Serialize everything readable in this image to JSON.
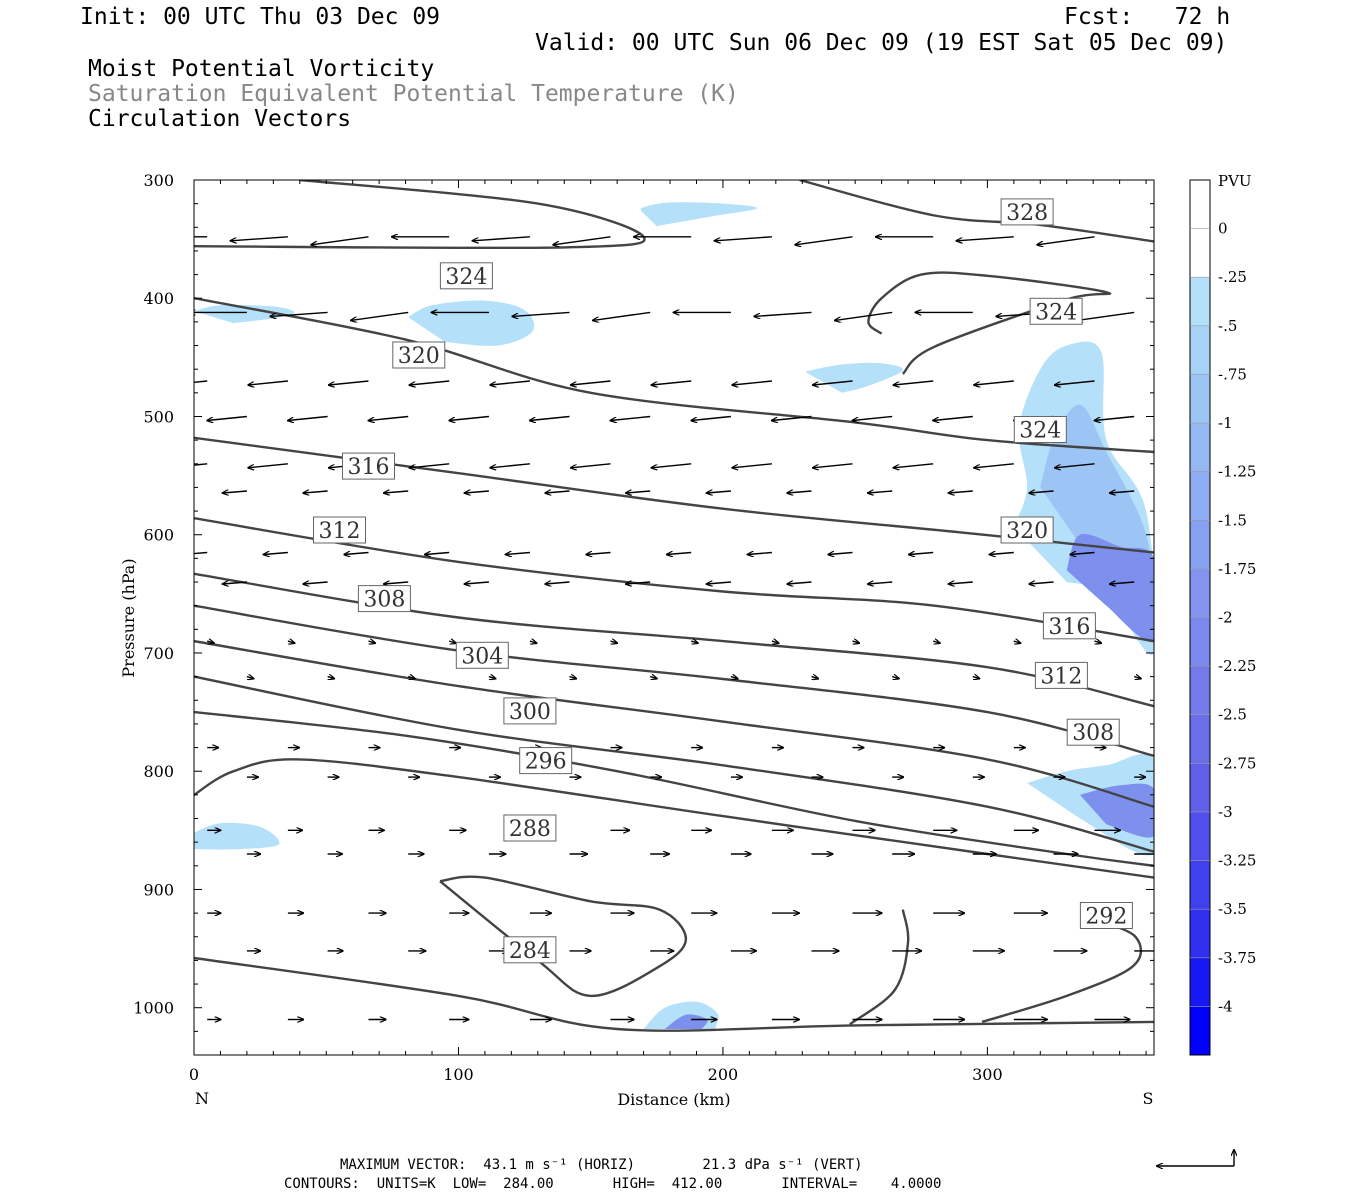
{
  "header": {
    "init": "Init: 00 UTC Thu 03 Dec 09",
    "fcst": "Fcst:   72 h",
    "valid": "Valid: 00 UTC Sun 06 Dec 09 (19 EST Sat 05 Dec 09)",
    "field1": "Moist Potential Vorticity",
    "field2": "Saturation Equivalent Potential Temperature (K)",
    "field3": "Circulation Vectors"
  },
  "colors": {
    "contour": "#444444",
    "fill_light": "#b4e0fa",
    "fill_mid": "#9cc4f5",
    "fill_dark": "#8aa8ef",
    "fill_darker": "#7d90ee"
  },
  "chart_data": {
    "type": "cross-section",
    "xlabel": "Distance (km)",
    "ylabel": "Pressure (hPa)",
    "xlim": [
      0,
      363
    ],
    "ylim": [
      1040,
      300
    ],
    "x_ticks": [
      "0",
      "100",
      "200",
      "300"
    ],
    "x_tick_values": [
      0,
      100,
      200,
      300
    ],
    "y_ticks": [
      "300",
      "400",
      "500",
      "600",
      "700",
      "800",
      "900",
      "1000"
    ],
    "y_tick_values": [
      300,
      400,
      500,
      600,
      700,
      800,
      900,
      1000
    ],
    "end_labels": {
      "left": "N",
      "right": "S"
    },
    "colorbar": {
      "title": "PVU",
      "labels": [
        "0",
        "-.25",
        "-.5",
        "-.75",
        "-1",
        "-1.25",
        "-1.5",
        "-1.75",
        "-2",
        "-2.25",
        "-2.5",
        "-2.75",
        "-3",
        "-3.25",
        "-3.5",
        "-3.75",
        "-4"
      ],
      "colors": [
        "#ffffff",
        "#ffffff",
        "#b4e0fa",
        "#a8d2f8",
        "#9cc4f5",
        "#95b8f3",
        "#8eacf1",
        "#88a0f0",
        "#8294ee",
        "#7b88ec",
        "#737cea",
        "#6b70ea",
        "#6060ea",
        "#5050ec",
        "#4040ee",
        "#3030f0",
        "#1818f6",
        "#0000ff"
      ]
    },
    "contour_labels": [
      {
        "text": "328",
        "x": 315,
        "p": 327
      },
      {
        "text": "324",
        "x": 103,
        "p": 381
      },
      {
        "text": "324",
        "x": 326,
        "p": 411
      },
      {
        "text": "324",
        "x": 320,
        "p": 511
      },
      {
        "text": "320",
        "x": 85,
        "p": 448
      },
      {
        "text": "320",
        "x": 315,
        "p": 596
      },
      {
        "text": "316",
        "x": 66,
        "p": 542
      },
      {
        "text": "316",
        "x": 331,
        "p": 677
      },
      {
        "text": "312",
        "x": 55,
        "p": 596
      },
      {
        "text": "312",
        "x": 328,
        "p": 719
      },
      {
        "text": "308",
        "x": 72,
        "p": 654
      },
      {
        "text": "308",
        "x": 340,
        "p": 767
      },
      {
        "text": "304",
        "x": 109,
        "p": 702
      },
      {
        "text": "300",
        "x": 127,
        "p": 749
      },
      {
        "text": "296",
        "x": 133,
        "p": 791
      },
      {
        "text": "288",
        "x": 127,
        "p": 848
      },
      {
        "text": "284",
        "x": 127,
        "p": 951
      },
      {
        "text": "292",
        "x": 345,
        "p": 922
      }
    ],
    "contours": [
      [
        [
          40,
          300
        ],
        [
          130,
          320
        ],
        [
          170,
          348
        ],
        [
          140,
          357
        ],
        [
          0,
          356
        ]
      ],
      [
        [
          0,
          400
        ],
        [
          80,
          435
        ],
        [
          150,
          480
        ],
        [
          250,
          505
        ],
        [
          300,
          520
        ],
        [
          363,
          530
        ]
      ],
      [
        [
          0,
          518
        ],
        [
          100,
          548
        ],
        [
          200,
          578
        ],
        [
          290,
          598
        ],
        [
          363,
          615
        ]
      ],
      [
        [
          0,
          586
        ],
        [
          100,
          623
        ],
        [
          200,
          648
        ],
        [
          280,
          660
        ],
        [
          363,
          690
        ]
      ],
      [
        [
          0,
          633
        ],
        [
          100,
          670
        ],
        [
          200,
          690
        ],
        [
          300,
          712
        ],
        [
          363,
          745
        ]
      ],
      [
        [
          0,
          660
        ],
        [
          100,
          698
        ],
        [
          200,
          722
        ],
        [
          300,
          750
        ],
        [
          363,
          787
        ]
      ],
      [
        [
          0,
          690
        ],
        [
          100,
          728
        ],
        [
          200,
          758
        ],
        [
          300,
          790
        ],
        [
          363,
          830
        ]
      ],
      [
        [
          0,
          720
        ],
        [
          100,
          765
        ],
        [
          200,
          795
        ],
        [
          300,
          830
        ],
        [
          363,
          868
        ]
      ],
      [
        [
          0,
          750
        ],
        [
          80,
          770
        ],
        [
          160,
          800
        ],
        [
          250,
          842
        ],
        [
          330,
          870
        ],
        [
          363,
          880
        ]
      ],
      [
        [
          0,
          820
        ],
        [
          15,
          800
        ],
        [
          40,
          790
        ],
        [
          100,
          805
        ],
        [
          200,
          838
        ],
        [
          300,
          870
        ],
        [
          363,
          890
        ]
      ],
      [
        [
          0,
          958
        ],
        [
          100,
          990
        ],
        [
          160,
          1018
        ],
        [
          250,
          1015
        ],
        [
          363,
          1012
        ]
      ],
      [
        [
          93,
          893
        ],
        [
          110,
          890
        ],
        [
          150,
          910
        ],
        [
          176,
          917
        ],
        [
          186,
          942
        ],
        [
          176,
          965
        ],
        [
          150,
          990
        ],
        [
          130,
          960
        ],
        [
          93,
          893
        ]
      ],
      [
        [
          248,
          1014
        ],
        [
          265,
          985
        ],
        [
          270,
          945
        ],
        [
          268,
          917
        ]
      ],
      [
        [
          298,
          1012
        ],
        [
          330,
          990
        ],
        [
          355,
          965
        ],
        [
          356,
          940
        ],
        [
          340,
          925
        ]
      ],
      [
        [
          229,
          300
        ],
        [
          280,
          330
        ],
        [
          320,
          338
        ],
        [
          363,
          352
        ]
      ],
      [
        [
          260,
          430
        ],
        [
          255,
          420
        ],
        [
          260,
          400
        ],
        [
          275,
          380
        ],
        [
          300,
          381
        ],
        [
          345,
          395
        ],
        [
          330,
          401
        ],
        [
          280,
          441
        ],
        [
          268,
          464
        ]
      ]
    ],
    "pv_regions": [
      {
        "level": -0.5,
        "points": [
          [
            169,
            326
          ],
          [
            170,
            323
          ],
          [
            180,
            319
          ],
          [
            200,
            320
          ],
          [
            213,
            324
          ],
          [
            195,
            331
          ],
          [
            175,
            339
          ]
        ]
      },
      {
        "level": -0.5,
        "points": [
          [
            81,
            416
          ],
          [
            90,
            406
          ],
          [
            110,
            402
          ],
          [
            125,
            410
          ],
          [
            128,
            428
          ],
          [
            115,
            440
          ],
          [
            95,
            437
          ]
        ]
      },
      {
        "level": -0.5,
        "points": [
          [
            0,
            411
          ],
          [
            10,
            406
          ],
          [
            30,
            407
          ],
          [
            38,
            412
          ],
          [
            30,
            417
          ],
          [
            15,
            421
          ]
        ]
      },
      {
        "level": -0.5,
        "points": [
          [
            231,
            462
          ],
          [
            245,
            456
          ],
          [
            260,
            455
          ],
          [
            268,
            461
          ],
          [
            255,
            474
          ],
          [
            245,
            480
          ]
        ]
      },
      {
        "level": -0.5,
        "points": [
          [
            310,
            593
          ],
          [
            315,
            560
          ],
          [
            312,
            510
          ],
          [
            320,
            460
          ],
          [
            330,
            440
          ],
          [
            343,
            445
          ],
          [
            345,
            520
          ],
          [
            360,
            580
          ],
          [
            363,
            700
          ],
          [
            345,
            650
          ],
          [
            330,
            640
          ]
        ]
      },
      {
        "level": -0.75,
        "points": [
          [
            320,
            560
          ],
          [
            325,
            520
          ],
          [
            335,
            490
          ],
          [
            345,
            530
          ],
          [
            360,
            600
          ],
          [
            363,
            680
          ],
          [
            345,
            640
          ]
        ]
      },
      {
        "level": -1.0,
        "points": [
          [
            330,
            630
          ],
          [
            335,
            600
          ],
          [
            350,
            610
          ],
          [
            363,
            620
          ],
          [
            363,
            690
          ],
          [
            345,
            660
          ]
        ]
      },
      {
        "level": -0.5,
        "points": [
          [
            0,
            852
          ],
          [
            10,
            844
          ],
          [
            25,
            847
          ],
          [
            32,
            862
          ],
          [
            15,
            866
          ],
          [
            0,
            866
          ]
        ]
      },
      {
        "level": -0.5,
        "points": [
          [
            315,
            810
          ],
          [
            330,
            800
          ],
          [
            345,
            795
          ],
          [
            363,
            790
          ],
          [
            363,
            870
          ],
          [
            335,
            840
          ]
        ]
      },
      {
        "level": -1.0,
        "points": [
          [
            335,
            820
          ],
          [
            350,
            812
          ],
          [
            363,
            815
          ],
          [
            363,
            855
          ],
          [
            345,
            845
          ]
        ]
      },
      {
        "level": -0.5,
        "points": [
          [
            170,
            1018
          ],
          [
            178,
            1000
          ],
          [
            190,
            995
          ],
          [
            198,
            1005
          ],
          [
            197,
            1018
          ]
        ]
      },
      {
        "level": -1.0,
        "points": [
          [
            178,
            1018
          ],
          [
            186,
            1006
          ],
          [
            194,
            1010
          ],
          [
            192,
            1018
          ]
        ]
      }
    ],
    "vectors_note": "north-to-south cross-section; upper levels winds toward N, lower levels toward S"
  },
  "footer": {
    "max_vector": "MAXIMUM VECTOR:  43.1 m s⁻¹ (HORIZ)        21.3 dPa s⁻¹ (VERT)",
    "contours": "CONTOURS:  UNITS=K  LOW=  284.00       HIGH=  412.00       INTERVAL=    4.0000"
  }
}
